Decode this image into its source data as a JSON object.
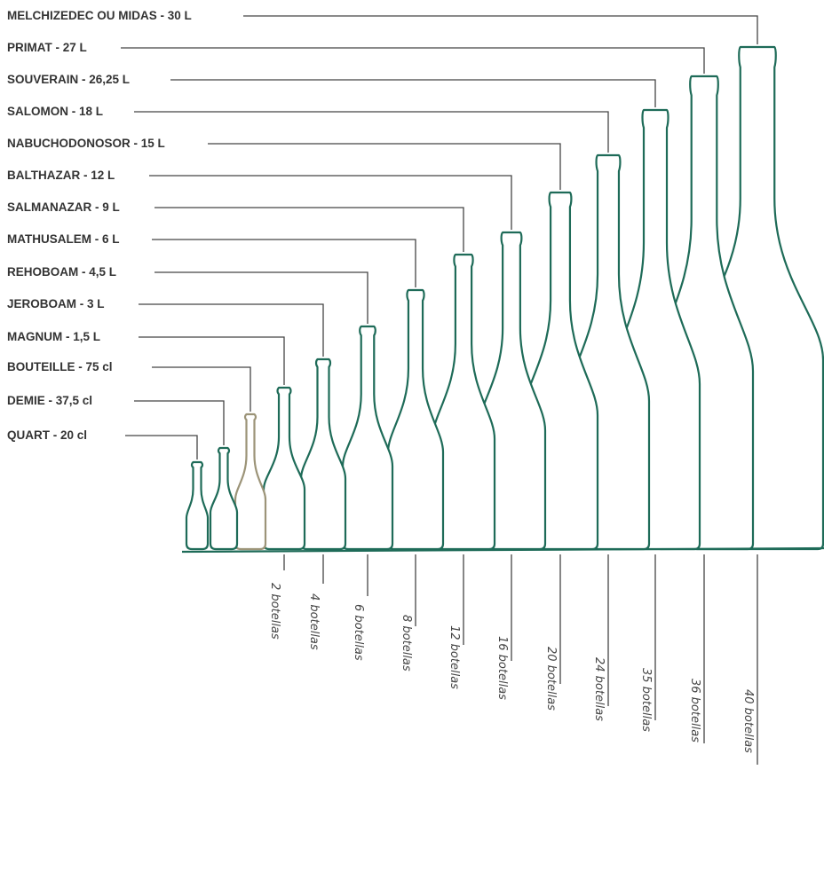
{
  "colors": {
    "bottle": "#1e6b58",
    "highlight_bottle": "#9c9478",
    "leader": "#444444",
    "label_text": "#333333"
  },
  "bottles": [
    {
      "label": "QUART - 20 cl",
      "count": ""
    },
    {
      "label": "DEMIE - 37,5 cl",
      "count": ""
    },
    {
      "label": "BOUTEILLE - 75 cl",
      "count": ""
    },
    {
      "label": "MAGNUM - 1,5 L",
      "count": "2 botellas"
    },
    {
      "label": "JEROBOAM - 3 L",
      "count": "4 botellas"
    },
    {
      "label": "REHOBOAM - 4,5 L",
      "count": "6 botellas"
    },
    {
      "label": "MATHUSALEM - 6 L",
      "count": "8 botellas"
    },
    {
      "label": "SALMANAZAR - 9 L",
      "count": "12 botellas"
    },
    {
      "label": "BALTHAZAR - 12 L",
      "count": "16 botellas"
    },
    {
      "label": "NABUCHODONOSOR - 15 L",
      "count": "20 botellas"
    },
    {
      "label": "SALOMON - 18 L",
      "count": "24 botellas"
    },
    {
      "label": "SOUVERAIN - 26,25 L",
      "count": "35 botellas"
    },
    {
      "label": "PRIMAT - 27 L",
      "count": "36 botellas"
    },
    {
      "label": "MELCHIZEDEC OU MIDAS - 30 L",
      "count": "40 botellas"
    }
  ]
}
